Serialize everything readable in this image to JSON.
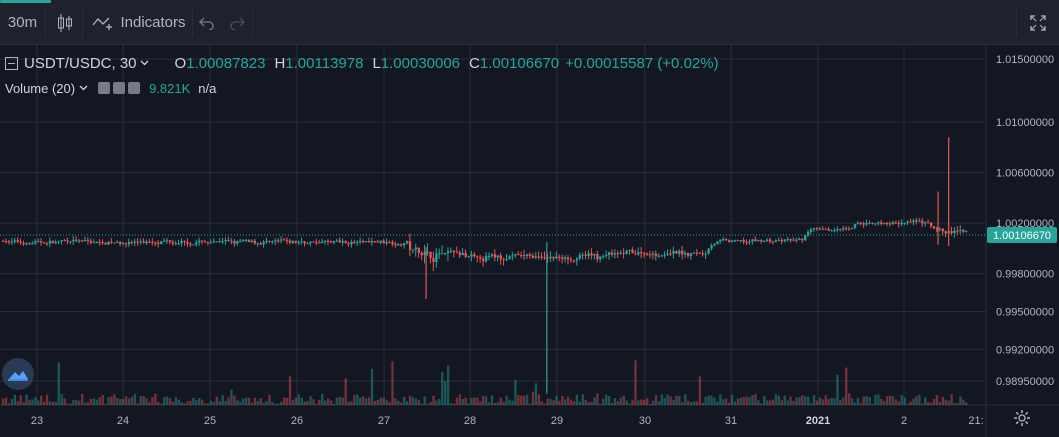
{
  "toolbar": {
    "interval": "30m",
    "indicators_label": "Indicators",
    "icons": [
      "candlestick-icon",
      "indicators-icon",
      "undo-icon",
      "redo-icon",
      "fullscreen-icon"
    ]
  },
  "legend": {
    "symbol": "USDT/USDC, 30",
    "open_label": "O",
    "open": "1.00087823",
    "high_label": "H",
    "high": "1.00113978",
    "low_label": "L",
    "low": "1.00030006",
    "close_label": "C",
    "close": "1.00106670",
    "change": "+0.00015587 (+0.02%)"
  },
  "volume_legend": {
    "label": "Volume (20)",
    "value": "9.821K",
    "ma_value": "n/a"
  },
  "colors": {
    "background": "#131722",
    "up": "#26a69a",
    "down": "#ef5350",
    "grid": "#2a2e39",
    "text": "#b2b5be"
  },
  "chart_data": {
    "type": "candlestick",
    "y_tick_labels": [
      "1.01500000",
      "1.01000000",
      "1.00600000",
      "1.00200000",
      "0.99800000",
      "0.99500000",
      "0.99200000",
      "0.98950000"
    ],
    "y_ticks": [
      1.015,
      1.01,
      1.006,
      1.002,
      0.998,
      0.995,
      0.992,
      0.9895
    ],
    "x_tick_labels": [
      "23",
      "24",
      "25",
      "26",
      "27",
      "28",
      "29",
      "30",
      "31",
      "2021",
      "2",
      "21:"
    ],
    "last_price_label": "1.00106670",
    "last_price": 1.0010667,
    "ylim": [
      0.988,
      1.0165
    ],
    "grid": true,
    "segments": [
      {
        "from": 0,
        "to": 0.42,
        "base": 1.0005,
        "amp": 0.0006
      },
      {
        "from": 0.42,
        "to": 0.47,
        "base": 0.9996,
        "amp": 0.0015
      },
      {
        "from": 0.47,
        "to": 0.62,
        "base": 0.9993,
        "amp": 0.0009
      },
      {
        "from": 0.62,
        "to": 0.73,
        "base": 0.9996,
        "amp": 0.0008
      },
      {
        "from": 0.73,
        "to": 0.83,
        "base": 1.0006,
        "amp": 0.0005
      },
      {
        "from": 0.83,
        "to": 0.88,
        "base": 1.0015,
        "amp": 0.0004
      },
      {
        "from": 0.88,
        "to": 0.96,
        "base": 1.002,
        "amp": 0.0006
      },
      {
        "from": 0.96,
        "to": 1.0,
        "base": 1.0013,
        "amp": 0.0008
      }
    ],
    "spikes": [
      {
        "day_pos": 0.564,
        "low": 0.9885,
        "high": 1.0005
      },
      {
        "day_pos": 0.439,
        "low": 0.996,
        "high": 1.0001
      },
      {
        "day_pos": 0.98,
        "low": 1.0002,
        "high": 1.0088
      },
      {
        "day_pos": 0.969,
        "low": 1.0003,
        "high": 1.0045
      }
    ]
  }
}
